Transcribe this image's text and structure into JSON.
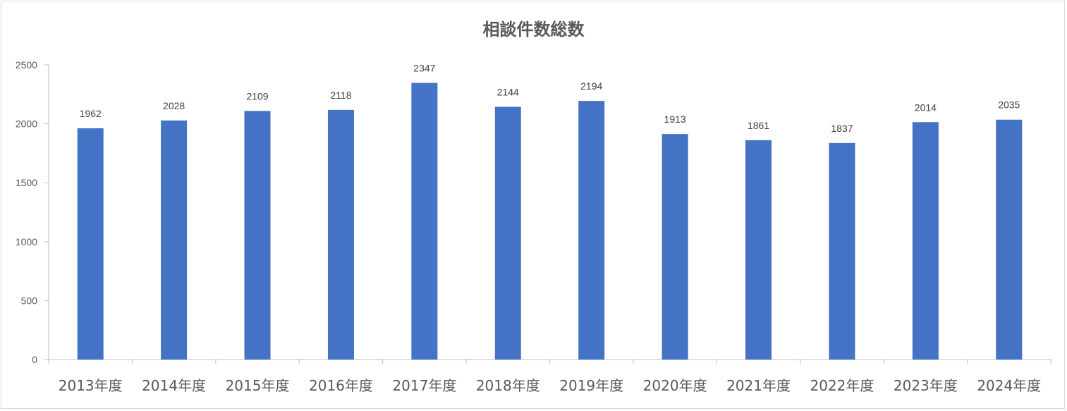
{
  "chart_data": {
    "type": "bar",
    "title": "相談件数総数",
    "categories": [
      "2013年度",
      "2014年度",
      "2015年度",
      "2016年度",
      "2017年度",
      "2018年度",
      "2019年度",
      "2020年度",
      "2021年度",
      "2022年度",
      "2023年度",
      "2024年度"
    ],
    "values": [
      1962,
      2028,
      2109,
      2118,
      2347,
      2144,
      2194,
      1913,
      1861,
      1837,
      2014,
      2035
    ],
    "ylim": [
      0,
      2500
    ],
    "yticks": [
      0,
      500,
      1000,
      1500,
      2000,
      2500
    ],
    "bar_color": "#4472C4",
    "grid": false,
    "legend": "none",
    "data_labels": true
  }
}
